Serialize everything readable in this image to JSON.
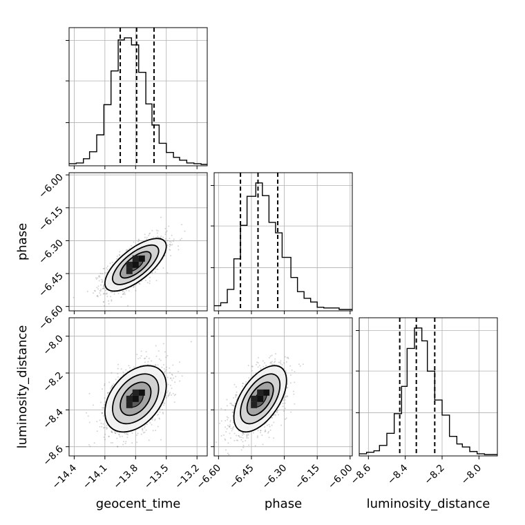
{
  "chart_data": {
    "type": "corner",
    "parameters": [
      "geocent_time",
      "phase",
      "luminosity_distance"
    ],
    "axis_labels": {
      "x": [
        "geocent_time",
        "phase",
        "luminosity_distance"
      ],
      "y": [
        "phase",
        "luminosity_distance"
      ]
    },
    "ticks": {
      "geocent_time": [
        "−14.4",
        "−14.1",
        "−13.8",
        "−13.5",
        "−13.2"
      ],
      "phase_x": [
        "−6.60",
        "−6.45",
        "−6.30",
        "−6.15",
        "−6.00"
      ],
      "phase_y": [
        "−6.00",
        "−6.15",
        "−6.30",
        "−6.45",
        "−6.60"
      ],
      "luminosity_distance_x": [
        "−8.6",
        "−8.4",
        "−8.2",
        "−8.0"
      ],
      "luminosity_distance_y": [
        "−8.0",
        "−8.2",
        "−8.4",
        "−8.6"
      ]
    },
    "ranges": {
      "geocent_time": [
        -14.45,
        -13.1
      ],
      "phase": [
        -6.62,
        -5.99
      ],
      "luminosity_distance": [
        -8.65,
        -7.9
      ]
    },
    "quantiles": {
      "geocent_time": [
        -13.95,
        -13.79,
        -13.62
      ],
      "phase": [
        -6.5,
        -6.42,
        -6.33
      ],
      "luminosity_distance": [
        -8.43,
        -8.34,
        -8.24
      ]
    },
    "histograms": [
      {
        "parameter": "geocent_time",
        "bin_edges": [
          -14.45,
          -14.38,
          -14.31,
          -14.25,
          -14.18,
          -14.11,
          -14.04,
          -13.97,
          -13.91,
          -13.84,
          -13.77,
          -13.7,
          -13.64,
          -13.57,
          -13.5,
          -13.43,
          -13.37,
          -13.3,
          -13.23,
          -13.16,
          -13.1
        ],
        "counts": [
          1,
          2,
          8,
          18,
          42,
          85,
          133,
          177,
          180,
          170,
          131,
          86,
          56,
          30,
          17,
          10,
          6,
          2,
          1,
          0
        ]
      },
      {
        "parameter": "phase",
        "bin_edges": [
          -6.62,
          -6.59,
          -6.56,
          -6.53,
          -6.5,
          -6.47,
          -6.43,
          -6.4,
          -6.37,
          -6.34,
          -6.31,
          -6.27,
          -6.24,
          -6.21,
          -6.18,
          -6.15,
          -6.12,
          -6.08,
          -6.05,
          -6.02,
          -5.99
        ],
        "counts": [
          5,
          9,
          27,
          68,
          113,
          152,
          170,
          153,
          117,
          103,
          70,
          43,
          24,
          15,
          10,
          3,
          2,
          2,
          0,
          0
        ]
      },
      {
        "parameter": "luminosity_distance",
        "bin_edges": [
          -8.65,
          -8.61,
          -8.57,
          -8.54,
          -8.5,
          -8.46,
          -8.42,
          -8.39,
          -8.35,
          -8.31,
          -8.28,
          -8.24,
          -8.2,
          -8.16,
          -8.12,
          -8.09,
          -8.05,
          -8.01,
          -7.97,
          -7.94,
          -7.9
        ],
        "counts": [
          1,
          3,
          5,
          12,
          28,
          54,
          90,
          140,
          167,
          150,
          110,
          72,
          52,
          24,
          14,
          10,
          4,
          1,
          0,
          0
        ]
      }
    ],
    "density_2d": [
      {
        "x_param": "geocent_time",
        "y_param": "phase",
        "center": [
          -13.8,
          -6.41
        ],
        "sd": [
          0.15,
          0.06
        ],
        "correlation": 0.7
      },
      {
        "x_param": "geocent_time",
        "y_param": "luminosity_distance",
        "center": [
          -13.8,
          -8.34
        ],
        "sd": [
          0.15,
          0.09
        ],
        "correlation": 0.4
      },
      {
        "x_param": "phase",
        "y_param": "luminosity_distance",
        "center": [
          -6.41,
          -8.34
        ],
        "sd": [
          0.06,
          0.09
        ],
        "correlation": 0.55
      }
    ],
    "contour_sigma_levels": [
      0.5,
      1.0,
      1.5,
      2.0
    ]
  }
}
